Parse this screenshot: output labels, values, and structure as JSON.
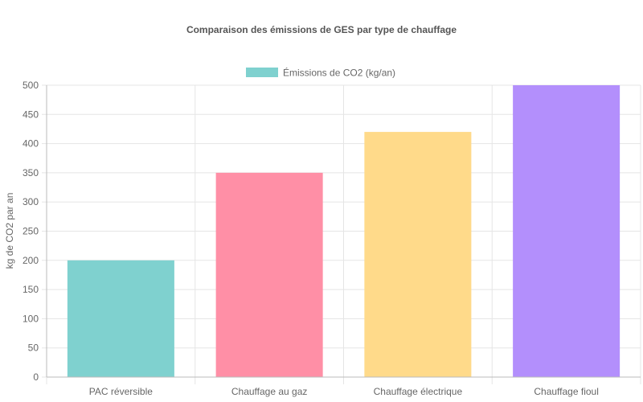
{
  "chart_data": {
    "type": "bar",
    "title": "Comparaison des émissions de GES par type de chauffage",
    "ylabel": "kg de CO2 par an",
    "xlabel": "",
    "categories": [
      "PAC réversible",
      "Chauffage au gaz",
      "Chauffage électrique",
      "Chauffage fioul"
    ],
    "series": [
      {
        "name": "Émissions de CO2 (kg/an)",
        "values": [
          200,
          350,
          420,
          500
        ]
      }
    ],
    "ylim": [
      0,
      500
    ],
    "yticks": [
      0,
      50,
      100,
      150,
      200,
      250,
      300,
      350,
      400,
      450,
      500
    ],
    "grid": true,
    "legend_position": "top-center",
    "colors": [
      "#7fd1cf",
      "#ff8fa6",
      "#ffda8a",
      "#b38ffc"
    ],
    "legend_color": "#7fd1cf"
  }
}
